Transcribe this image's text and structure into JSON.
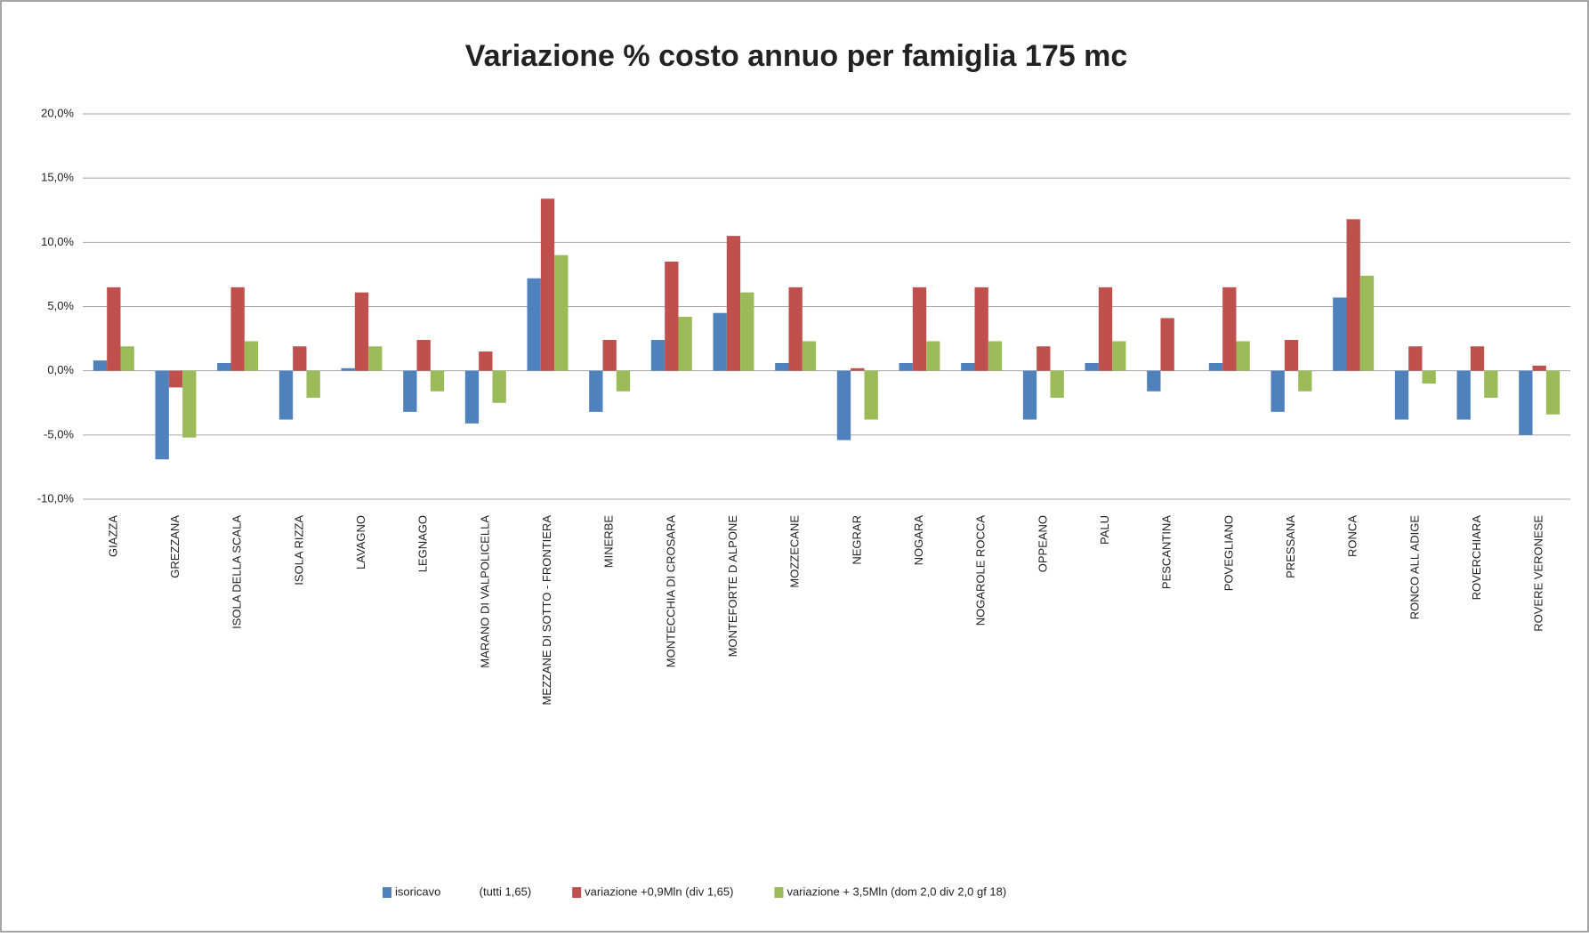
{
  "chart_data": {
    "type": "bar",
    "title": "Variazione % costo annuo per famiglia 175 mc",
    "categories": [
      "GIAZZA",
      "GREZZANA",
      "ISOLA DELLA SCALA",
      "ISOLA RIZZA",
      "LAVAGNO",
      "LEGNAGO",
      "MARANO DI VALPOLICELLA",
      "MEZZANE DI SOTTO - FRONTIERA",
      "MINERBE",
      "MONTECCHIA DI CROSARA",
      "MONTEFORTE D ALPONE",
      "MOZZECANE",
      "NEGRAR",
      "NOGARA",
      "NOGAROLE ROCCA",
      "OPPEANO",
      "PALU",
      "PESCANTINA",
      "POVEGLIANO",
      "PRESSANA",
      "RONCA",
      "RONCO ALL ADIGE",
      "ROVERCHIARA",
      "ROVERE VERONESE"
    ],
    "series": [
      {
        "name": "isoricavo            (tutti 1,65)",
        "color": "#4f81bd",
        "values": [
          0.8,
          -6.9,
          0.6,
          -3.8,
          0.2,
          -3.2,
          -4.1,
          7.2,
          -3.2,
          2.4,
          4.5,
          0.6,
          -5.4,
          0.6,
          0.6,
          -3.8,
          0.6,
          -1.6,
          0.6,
          -3.2,
          5.7,
          -3.8,
          -3.8,
          -5.0
        ]
      },
      {
        "name": "variazione +0,9Mln (div 1,65)",
        "color": "#c0504d",
        "values": [
          6.5,
          -1.3,
          6.5,
          1.9,
          6.1,
          2.4,
          1.5,
          13.4,
          2.4,
          8.5,
          10.5,
          6.5,
          0.2,
          6.5,
          6.5,
          1.9,
          6.5,
          4.1,
          6.5,
          2.4,
          11.8,
          1.9,
          1.9,
          0.4
        ]
      },
      {
        "name": "variazione + 3,5Mln (dom 2,0 div 2,0 gf 18)",
        "color": "#9bbb59",
        "values": [
          1.9,
          -5.2,
          2.3,
          -2.1,
          1.9,
          -1.6,
          -2.5,
          9.0,
          -1.6,
          4.2,
          6.1,
          2.3,
          -3.8,
          2.3,
          2.3,
          -2.1,
          2.3,
          0,
          2.3,
          -1.6,
          7.4,
          -1.0,
          -2.1,
          -3.4
        ]
      }
    ],
    "ylim": [
      -10,
      20
    ],
    "yticks": [
      {
        "value": -10,
        "label": "-10,0%"
      },
      {
        "value": -5,
        "label": "-5,0%"
      },
      {
        "value": 0,
        "label": "0,0%"
      },
      {
        "value": 5,
        "label": "5,0%"
      },
      {
        "value": 10,
        "label": "10,0%"
      },
      {
        "value": 15,
        "label": "15,0%"
      },
      {
        "value": 20,
        "label": "20,0%"
      }
    ],
    "grid": true
  }
}
